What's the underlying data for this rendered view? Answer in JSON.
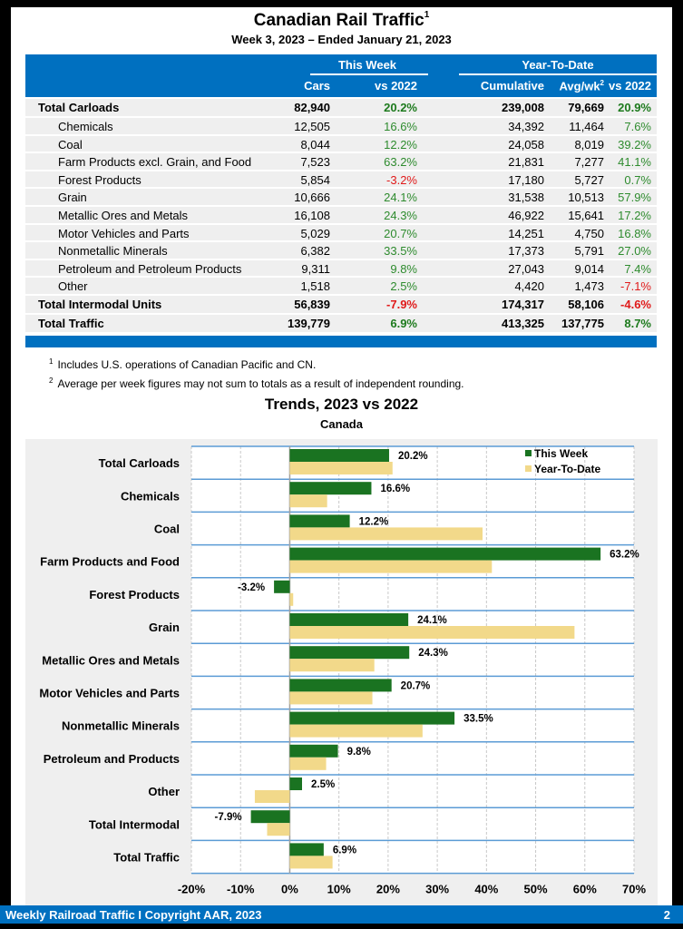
{
  "header": {
    "title": "Canadian Rail Traffic",
    "title_footnote": "1",
    "subtitle": "Week 3, 2023 – Ended January 21, 2023"
  },
  "table": {
    "group_this_week": "This Week",
    "group_ytd": "Year-To-Date",
    "columns": [
      "Cars",
      "vs 2022",
      "Cumulative",
      "Avg/wk",
      "vs 2022"
    ],
    "avg_footnote": "2",
    "rows": [
      {
        "label": "Total Carloads",
        "bold": true,
        "cars": "82,940",
        "vs_week": "20.2%",
        "cumulative": "239,008",
        "avg": "79,669",
        "vs_ytd": "20.9%"
      },
      {
        "label": "Chemicals",
        "bold": false,
        "cars": "12,505",
        "vs_week": "16.6%",
        "cumulative": "34,392",
        "avg": "11,464",
        "vs_ytd": "7.6%"
      },
      {
        "label": "Coal",
        "bold": false,
        "cars": "8,044",
        "vs_week": "12.2%",
        "cumulative": "24,058",
        "avg": "8,019",
        "vs_ytd": "39.2%"
      },
      {
        "label": "Farm Products excl. Grain, and Food",
        "bold": false,
        "cars": "7,523",
        "vs_week": "63.2%",
        "cumulative": "21,831",
        "avg": "7,277",
        "vs_ytd": "41.1%"
      },
      {
        "label": "Forest Products",
        "bold": false,
        "cars": "5,854",
        "vs_week": "-3.2%",
        "cumulative": "17,180",
        "avg": "5,727",
        "vs_ytd": "0.7%"
      },
      {
        "label": "Grain",
        "bold": false,
        "cars": "10,666",
        "vs_week": "24.1%",
        "cumulative": "31,538",
        "avg": "10,513",
        "vs_ytd": "57.9%"
      },
      {
        "label": "Metallic Ores and Metals",
        "bold": false,
        "cars": "16,108",
        "vs_week": "24.3%",
        "cumulative": "46,922",
        "avg": "15,641",
        "vs_ytd": "17.2%"
      },
      {
        "label": "Motor Vehicles and Parts",
        "bold": false,
        "cars": "5,029",
        "vs_week": "20.7%",
        "cumulative": "14,251",
        "avg": "4,750",
        "vs_ytd": "16.8%"
      },
      {
        "label": "Nonmetallic Minerals",
        "bold": false,
        "cars": "6,382",
        "vs_week": "33.5%",
        "cumulative": "17,373",
        "avg": "5,791",
        "vs_ytd": "27.0%"
      },
      {
        "label": "Petroleum and Petroleum Products",
        "bold": false,
        "cars": "9,311",
        "vs_week": "9.8%",
        "cumulative": "27,043",
        "avg": "9,014",
        "vs_ytd": "7.4%"
      },
      {
        "label": "Other",
        "bold": false,
        "cars": "1,518",
        "vs_week": "2.5%",
        "cumulative": "4,420",
        "avg": "1,473",
        "vs_ytd": "-7.1%"
      },
      {
        "label": "Total Intermodal Units",
        "bold": true,
        "cars": "56,839",
        "vs_week": "-7.9%",
        "cumulative": "174,317",
        "avg": "58,106",
        "vs_ytd": "-4.6%"
      },
      {
        "label": "Total Traffic",
        "bold": true,
        "cars": "139,779",
        "vs_week": "6.9%",
        "cumulative": "413,325",
        "avg": "137,775",
        "vs_ytd": "8.7%"
      }
    ]
  },
  "notes": [
    {
      "num": "1",
      "text": "Includes U.S. operations of Canadian Pacific and CN."
    },
    {
      "num": "2",
      "text": "Average per week figures may not sum to totals as a result of independent rounding."
    }
  ],
  "colors": {
    "brand_blue": "#0070c0",
    "this_week": "#1a7321",
    "ytd": "#f2d98a",
    "positive": "#2e8b2e",
    "negative": "#e01a1a",
    "row_rule": "#5b9bd5"
  },
  "chart_data": {
    "type": "bar",
    "orientation": "horizontal",
    "title": "Trends, 2023 vs 2022",
    "subtitle": "Canada",
    "categories": [
      "Total Carloads",
      "Chemicals",
      "Coal",
      "Farm Products and Food",
      "Forest Products",
      "Grain",
      "Metallic Ores and Metals",
      "Motor Vehicles and Parts",
      "Nonmetallic Minerals",
      "Petroleum and Products",
      "Other",
      "Total Intermodal",
      "Total Traffic"
    ],
    "series": [
      {
        "name": "This Week",
        "values": [
          20.2,
          16.6,
          12.2,
          63.2,
          -3.2,
          24.1,
          24.3,
          20.7,
          33.5,
          9.8,
          2.5,
          -7.9,
          6.9
        ],
        "labels": [
          "20.2%",
          "16.6%",
          "12.2%",
          "63.2%",
          "-3.2%",
          "24.1%",
          "24.3%",
          "20.7%",
          "33.5%",
          "9.8%",
          "2.5%",
          "-7.9%",
          "6.9%"
        ]
      },
      {
        "name": "Year-To-Date",
        "values": [
          20.9,
          7.6,
          39.2,
          41.1,
          0.7,
          57.9,
          17.2,
          16.8,
          27.0,
          7.4,
          -7.1,
          -4.6,
          8.7
        ]
      }
    ],
    "xlim": [
      -20,
      70
    ],
    "xticks": [
      "-20%",
      "-10%",
      "0%",
      "10%",
      "20%",
      "30%",
      "40%",
      "50%",
      "60%",
      "70%"
    ],
    "xtick_values": [
      -20,
      -10,
      0,
      10,
      20,
      30,
      40,
      50,
      60,
      70
    ],
    "grid": true,
    "legend": "top-right"
  },
  "footer": {
    "text": "Weekly Railroad Traffic I Copyright AAR, 2023",
    "page": "2"
  }
}
